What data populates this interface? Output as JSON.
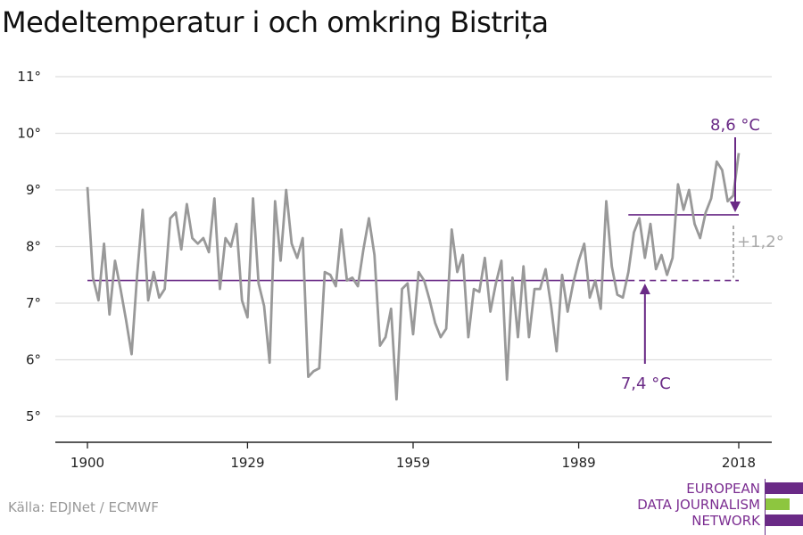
{
  "title": "Medeltemperatur i och omkring Bistrița",
  "source": "Källa: EDJNet / ECMWF",
  "logo": {
    "line1": "EUROPEAN",
    "line2": "DATA JOURNALISM",
    "line3": "NETWORK"
  },
  "colors": {
    "line": "#999999",
    "accent": "#6a2a86",
    "grid": "#dddddd",
    "diff": "#aaaaaa"
  },
  "chart_data": {
    "type": "line",
    "title": "Medeltemperatur i och omkring Bistrița",
    "xlabel": "",
    "ylabel": "",
    "ylim": [
      5,
      11
    ],
    "xlim": [
      1900,
      2018
    ],
    "x_ticks": [
      1900,
      1929,
      1959,
      1989,
      2018
    ],
    "y_ticks": [
      5,
      6,
      7,
      8,
      9,
      10,
      11
    ],
    "y_tick_labels": [
      "5°",
      "6°",
      "7°",
      "8°",
      "9°",
      "10°",
      "11°"
    ],
    "grid": true,
    "series": [
      {
        "x_start": 1900,
        "x_end": 2018,
        "values": [
          9.05,
          7.45,
          7.05,
          8.05,
          6.8,
          7.75,
          7.25,
          6.7,
          6.1,
          7.5,
          8.65,
          7.05,
          7.55,
          7.1,
          7.25,
          8.5,
          8.6,
          7.95,
          8.75,
          8.15,
          8.05,
          8.15,
          7.9,
          8.85,
          7.25,
          8.15,
          8.0,
          8.4,
          7.05,
          6.75,
          8.85,
          7.35,
          6.95,
          5.95,
          8.8,
          7.75,
          9.0,
          8.05,
          7.8,
          8.15,
          5.7,
          5.8,
          5.85,
          7.55,
          7.5,
          7.3,
          8.3,
          7.4,
          7.45,
          7.3,
          7.95,
          8.5,
          7.85,
          6.25,
          6.4,
          6.9,
          5.3,
          7.25,
          7.35,
          6.45,
          7.55,
          7.4,
          7.05,
          6.65,
          6.4,
          6.55,
          8.3,
          7.55,
          7.85,
          6.4,
          7.25,
          7.2,
          7.8,
          6.85,
          7.35,
          7.75,
          5.65,
          7.45,
          6.4,
          7.65,
          6.4,
          7.25,
          7.25,
          7.6,
          6.95,
          6.15,
          7.5,
          6.85,
          7.35,
          7.75,
          8.05,
          7.1,
          7.4,
          6.9,
          8.8,
          7.65,
          7.15,
          7.1,
          7.55,
          8.25,
          8.5,
          7.8,
          8.4,
          7.6,
          7.85,
          7.5,
          7.8,
          9.1,
          8.65,
          9.0,
          8.4,
          8.15,
          8.6,
          8.85,
          9.5,
          9.35,
          8.8,
          8.9,
          9.65
        ]
      }
    ],
    "reference_lines": [
      {
        "value": 7.4,
        "from": 1900,
        "to": 2018,
        "solid_until": 1998,
        "label": "7,4 °C"
      },
      {
        "value": 8.56,
        "from": 1998,
        "to": 2018,
        "label": "8,6 °C"
      }
    ],
    "difference_label": "+1,2°"
  }
}
